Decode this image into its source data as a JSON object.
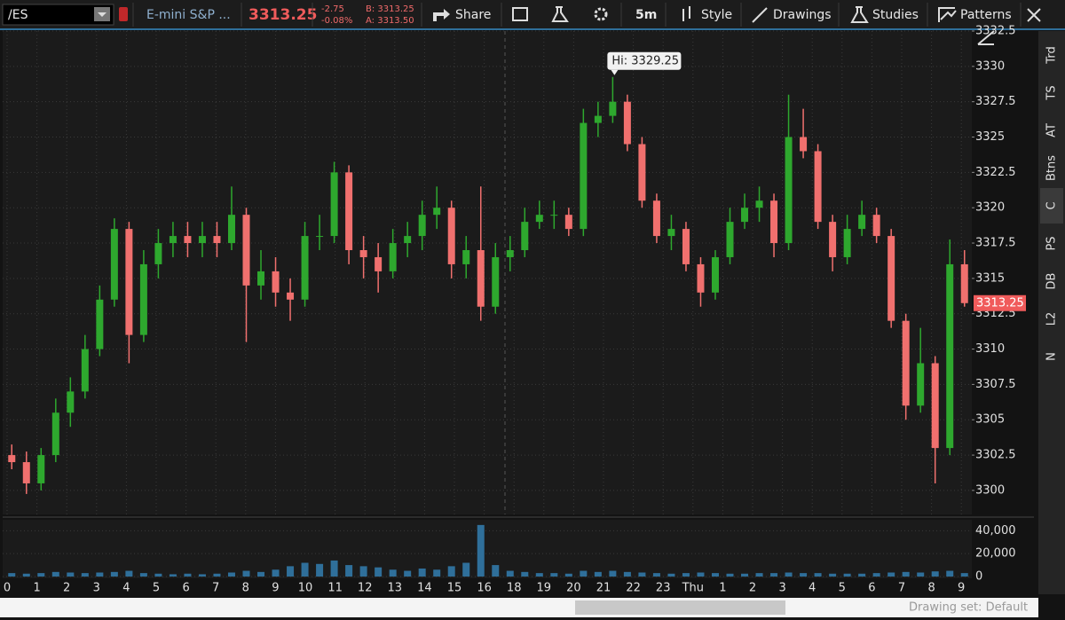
{
  "toolbar": {
    "symbol": "/ES",
    "description": "E-mini S&P ...",
    "last": "3313.25",
    "change": "-2.75",
    "change_pct": "-0.08%",
    "bid": "B: 3313.25",
    "ask": "A: 3313.50",
    "share": "Share",
    "timeframe": "5m",
    "style": "Style",
    "drawings": "Drawings",
    "studies": "Studies",
    "patterns": "Patterns"
  },
  "side_tabs": [
    "Trd",
    "TS",
    "AT",
    "Btns",
    "C",
    "PS",
    "DB",
    "L2",
    "N"
  ],
  "footer": {
    "drawing_set": "Drawing set: Default"
  },
  "chart_data": {
    "type": "candlestick",
    "annotation": "Hi: 3329.25",
    "up_color": "#2ea82e",
    "down_color": "#f0706e",
    "volume_color": "#2f6f9a",
    "time_labels": [
      "0",
      "1",
      "2",
      "3",
      "4",
      "5",
      "6",
      "7",
      "8",
      "9",
      "10",
      "11",
      "12",
      "13",
      "14",
      "15",
      "16",
      "18",
      "19",
      "20",
      "21",
      "22",
      "23",
      "Thu",
      "1",
      "2",
      "3",
      "4",
      "5",
      "6",
      "7",
      "8",
      "9"
    ],
    "open": [
      3302.5,
      3302,
      3300.5,
      3302.5,
      3305.5,
      3307,
      3310,
      3313.5,
      3318.5,
      3311,
      3316,
      3317.5,
      3318,
      3317.5,
      3318,
      3317.5,
      3319.5,
      3314.5,
      3315.5,
      3314,
      3313.5,
      3318,
      3318,
      3322.5,
      3317,
      3316.5,
      3315.5,
      3317.5,
      3318,
      3319.5,
      3320,
      3316,
      3317,
      3313,
      3316.5,
      3317,
      3319,
      3319.5,
      3319.5,
      3318.5,
      3326,
      3326.5,
      3327.5,
      3324.5,
      3320.5,
      3318,
      3318.5,
      3316,
      3314,
      3316.5,
      3319,
      3320,
      3320.5,
      3317.5,
      3325,
      3324,
      3319,
      3316.5,
      3318.5,
      3319.5,
      3318,
      3312,
      3306,
      3309,
      3303,
      3316
    ],
    "high": [
      3303.25,
      3302.75,
      3303,
      3306.5,
      3308,
      3311,
      3314.5,
      3319.25,
      3319,
      3317,
      3318.5,
      3319,
      3319,
      3319,
      3319,
      3321.5,
      3320,
      3317,
      3316.5,
      3315,
      3319,
      3319.5,
      3323.25,
      3323,
      3318,
      3317.5,
      3318.5,
      3319,
      3320.5,
      3321.5,
      3320.5,
      3318,
      3321.5,
      3317.5,
      3318,
      3320,
      3320.5,
      3320.5,
      3320,
      3327,
      3327.5,
      3329.25,
      3328,
      3325,
      3321,
      3319.5,
      3319,
      3316.5,
      3317,
      3320,
      3321,
      3321.5,
      3321,
      3328,
      3327,
      3324.5,
      3319.5,
      3319.5,
      3320.5,
      3320,
      3318.5,
      3312.5,
      3311.5,
      3309.5,
      3317.75,
      3317
    ],
    "low": [
      3301.5,
      3299.75,
      3300,
      3302,
      3304.5,
      3306.5,
      3309.5,
      3313,
      3309,
      3310.5,
      3315,
      3316.5,
      3316.5,
      3316.5,
      3316.5,
      3317,
      3310.5,
      3313.5,
      3313,
      3312,
      3313,
      3317,
      3317.5,
      3316,
      3315,
      3314,
      3315,
      3316.5,
      3317,
      3318.5,
      3315,
      3315,
      3312,
      3312.5,
      3315.5,
      3316.5,
      3318.5,
      3318.5,
      3318,
      3318,
      3325,
      3326,
      3324,
      3320,
      3317.5,
      3317,
      3315.5,
      3313,
      3313.5,
      3316,
      3318.5,
      3319,
      3316.5,
      3317,
      3323.5,
      3318.5,
      3315.5,
      3316,
      3318,
      3317.5,
      3311.5,
      3305,
      3305.5,
      3300.5,
      3302.5,
      3313
    ],
    "close": [
      3302,
      3300.5,
      3302.5,
      3305.5,
      3307,
      3310,
      3313.5,
      3318.5,
      3311,
      3316,
      3317.5,
      3318,
      3317.5,
      3318,
      3317.5,
      3319.5,
      3314.5,
      3315.5,
      3314,
      3313.5,
      3318,
      3318,
      3322.5,
      3317,
      3316.5,
      3315.5,
      3317.5,
      3318,
      3319.5,
      3320,
      3316,
      3317,
      3313,
      3316.5,
      3317,
      3319,
      3319.5,
      3319.5,
      3318.5,
      3326,
      3326.5,
      3327.5,
      3324.5,
      3320.5,
      3318,
      3318.5,
      3316,
      3314,
      3316.5,
      3319,
      3320,
      3320.5,
      3317.5,
      3325,
      3324,
      3319,
      3316.5,
      3318.5,
      3319.5,
      3318,
      3312,
      3306,
      3309,
      3303,
      3316,
      3313.25
    ],
    "ylim": [
      3298.3,
      3332.5
    ],
    "yticks": [
      3300,
      3302.5,
      3305,
      3307.5,
      3310,
      3312.5,
      3315,
      3317.5,
      3320,
      3322.5,
      3325,
      3327.5,
      3330,
      3332.5
    ],
    "volume": [
      3000,
      2500,
      3000,
      4000,
      3500,
      3000,
      3500,
      4000,
      5000,
      3000,
      2500,
      2000,
      2500,
      2000,
      2500,
      3500,
      5000,
      4000,
      6000,
      9000,
      12000,
      11000,
      14000,
      10000,
      9000,
      8000,
      6000,
      5000,
      7000,
      6000,
      9000,
      12000,
      45000,
      10000,
      5000,
      4000,
      3000,
      3000,
      2500,
      5000,
      4000,
      5000,
      4000,
      3500,
      3000,
      2500,
      3000,
      3500,
      3000,
      2500,
      2500,
      3000,
      3000,
      3500,
      3000,
      3000,
      2500,
      2500,
      2500,
      3000,
      3500,
      4000,
      3500,
      4500,
      5000,
      3000
    ],
    "volume_ylim": [
      0,
      48000
    ],
    "volume_yticks": [
      0,
      {
        "value": 20000,
        "label": "20,000"
      },
      {
        "value": 40000,
        "label": "40,000"
      }
    ],
    "grid": true
  }
}
